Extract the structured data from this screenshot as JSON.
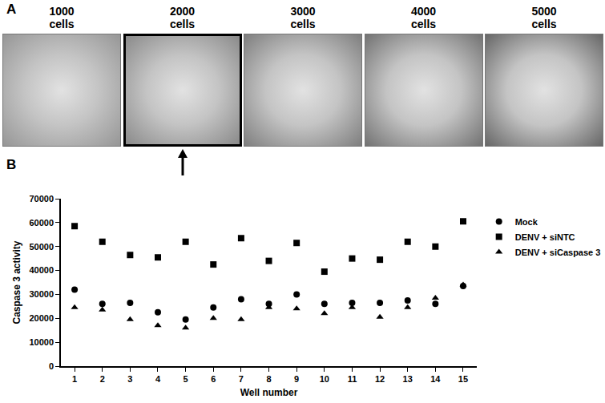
{
  "panel_labels": [
    "A",
    "B"
  ],
  "images": [
    {
      "lines": [
        "1000",
        "cells"
      ],
      "highlighted": false
    },
    {
      "lines": [
        "2000",
        "cells"
      ],
      "highlighted": true
    },
    {
      "lines": [
        "3000",
        "cells"
      ],
      "highlighted": false
    },
    {
      "lines": [
        "4000",
        "cells"
      ],
      "highlighted": false
    },
    {
      "lines": [
        "5000",
        "cells"
      ],
      "highlighted": false
    }
  ],
  "chart_data": {
    "type": "scatter",
    "x_label": "Well number",
    "y_label": "Caspase 3 activity",
    "x": [
      1,
      2,
      3,
      4,
      5,
      6,
      7,
      8,
      9,
      10,
      11,
      12,
      13,
      14,
      15
    ],
    "xlim": [
      0.5,
      15.5
    ],
    "xticks": [
      1,
      2,
      3,
      4,
      5,
      6,
      7,
      8,
      9,
      10,
      11,
      12,
      13,
      14,
      15
    ],
    "ylim": [
      0,
      70000
    ],
    "yticks": [
      0,
      10000,
      20000,
      30000,
      40000,
      50000,
      60000,
      70000
    ],
    "grid": false,
    "legend": "upper right",
    "series": [
      {
        "name": "Mock",
        "color": "#000000",
        "marker": "circle",
        "values": [
          32000,
          26000,
          26500,
          22500,
          19500,
          24500,
          28000,
          26000,
          30000,
          26000,
          26500,
          26500,
          27500,
          26000,
          33500
        ]
      },
      {
        "name": "DENV + siNTC",
        "color": "#000000",
        "marker": "square",
        "values": [
          58500,
          52000,
          46500,
          45500,
          52000,
          42500,
          53500,
          44000,
          51500,
          39500,
          45000,
          44500,
          52000,
          50000,
          60500
        ]
      },
      {
        "name": "DENV + siCaspase 3",
        "color": "#000000",
        "marker": "triangle-up",
        "values": [
          24500,
          23500,
          19500,
          17000,
          16000,
          20000,
          19500,
          24500,
          24000,
          22000,
          24500,
          20500,
          24500,
          28500,
          34000
        ]
      }
    ]
  }
}
